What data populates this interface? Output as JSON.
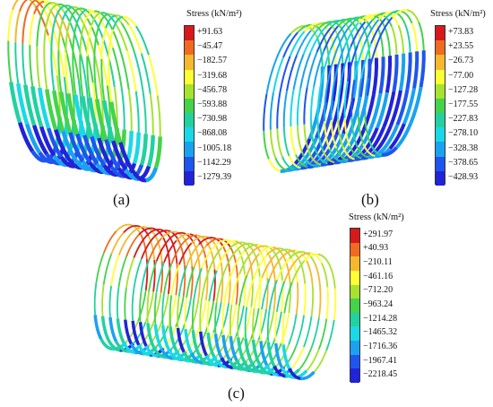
{
  "colormap": [
    "#d7191c",
    "#f06a1f",
    "#f5b82e",
    "#ffff33",
    "#a6e22e",
    "#44d34a",
    "#22d1a0",
    "#19d9e6",
    "#1aa2f0",
    "#1f55ee",
    "#2222d8"
  ],
  "panels": [
    {
      "caption": "(a)",
      "legend_title": "Stress (kN/m²)",
      "legend_values": [
        "+91.63",
        "−45.47",
        "−182.57",
        "−319.68",
        "−456.78",
        "−593.88",
        "−730.98",
        "−868.08",
        "−1005.18",
        "−1142.29",
        "−1279.39"
      ]
    },
    {
      "caption": "(b)",
      "legend_title": "Stress (kN/m²)",
      "legend_values": [
        "+73.83",
        "+23.55",
        "−26.73",
        "−77.00",
        "−127.28",
        "−177.55",
        "−227.83",
        "−278.10",
        "−328.38",
        "−378.65",
        "−428.93"
      ]
    },
    {
      "caption": "(c)",
      "legend_title": "Stress (kN/m²)",
      "legend_values": [
        "+291.97",
        "+40.93",
        "−210.11",
        "−461.16",
        "−712.20",
        "−963.24",
        "−1214.28",
        "−1465.32",
        "−1716.36",
        "−1967.41",
        "−2218.45"
      ]
    }
  ]
}
